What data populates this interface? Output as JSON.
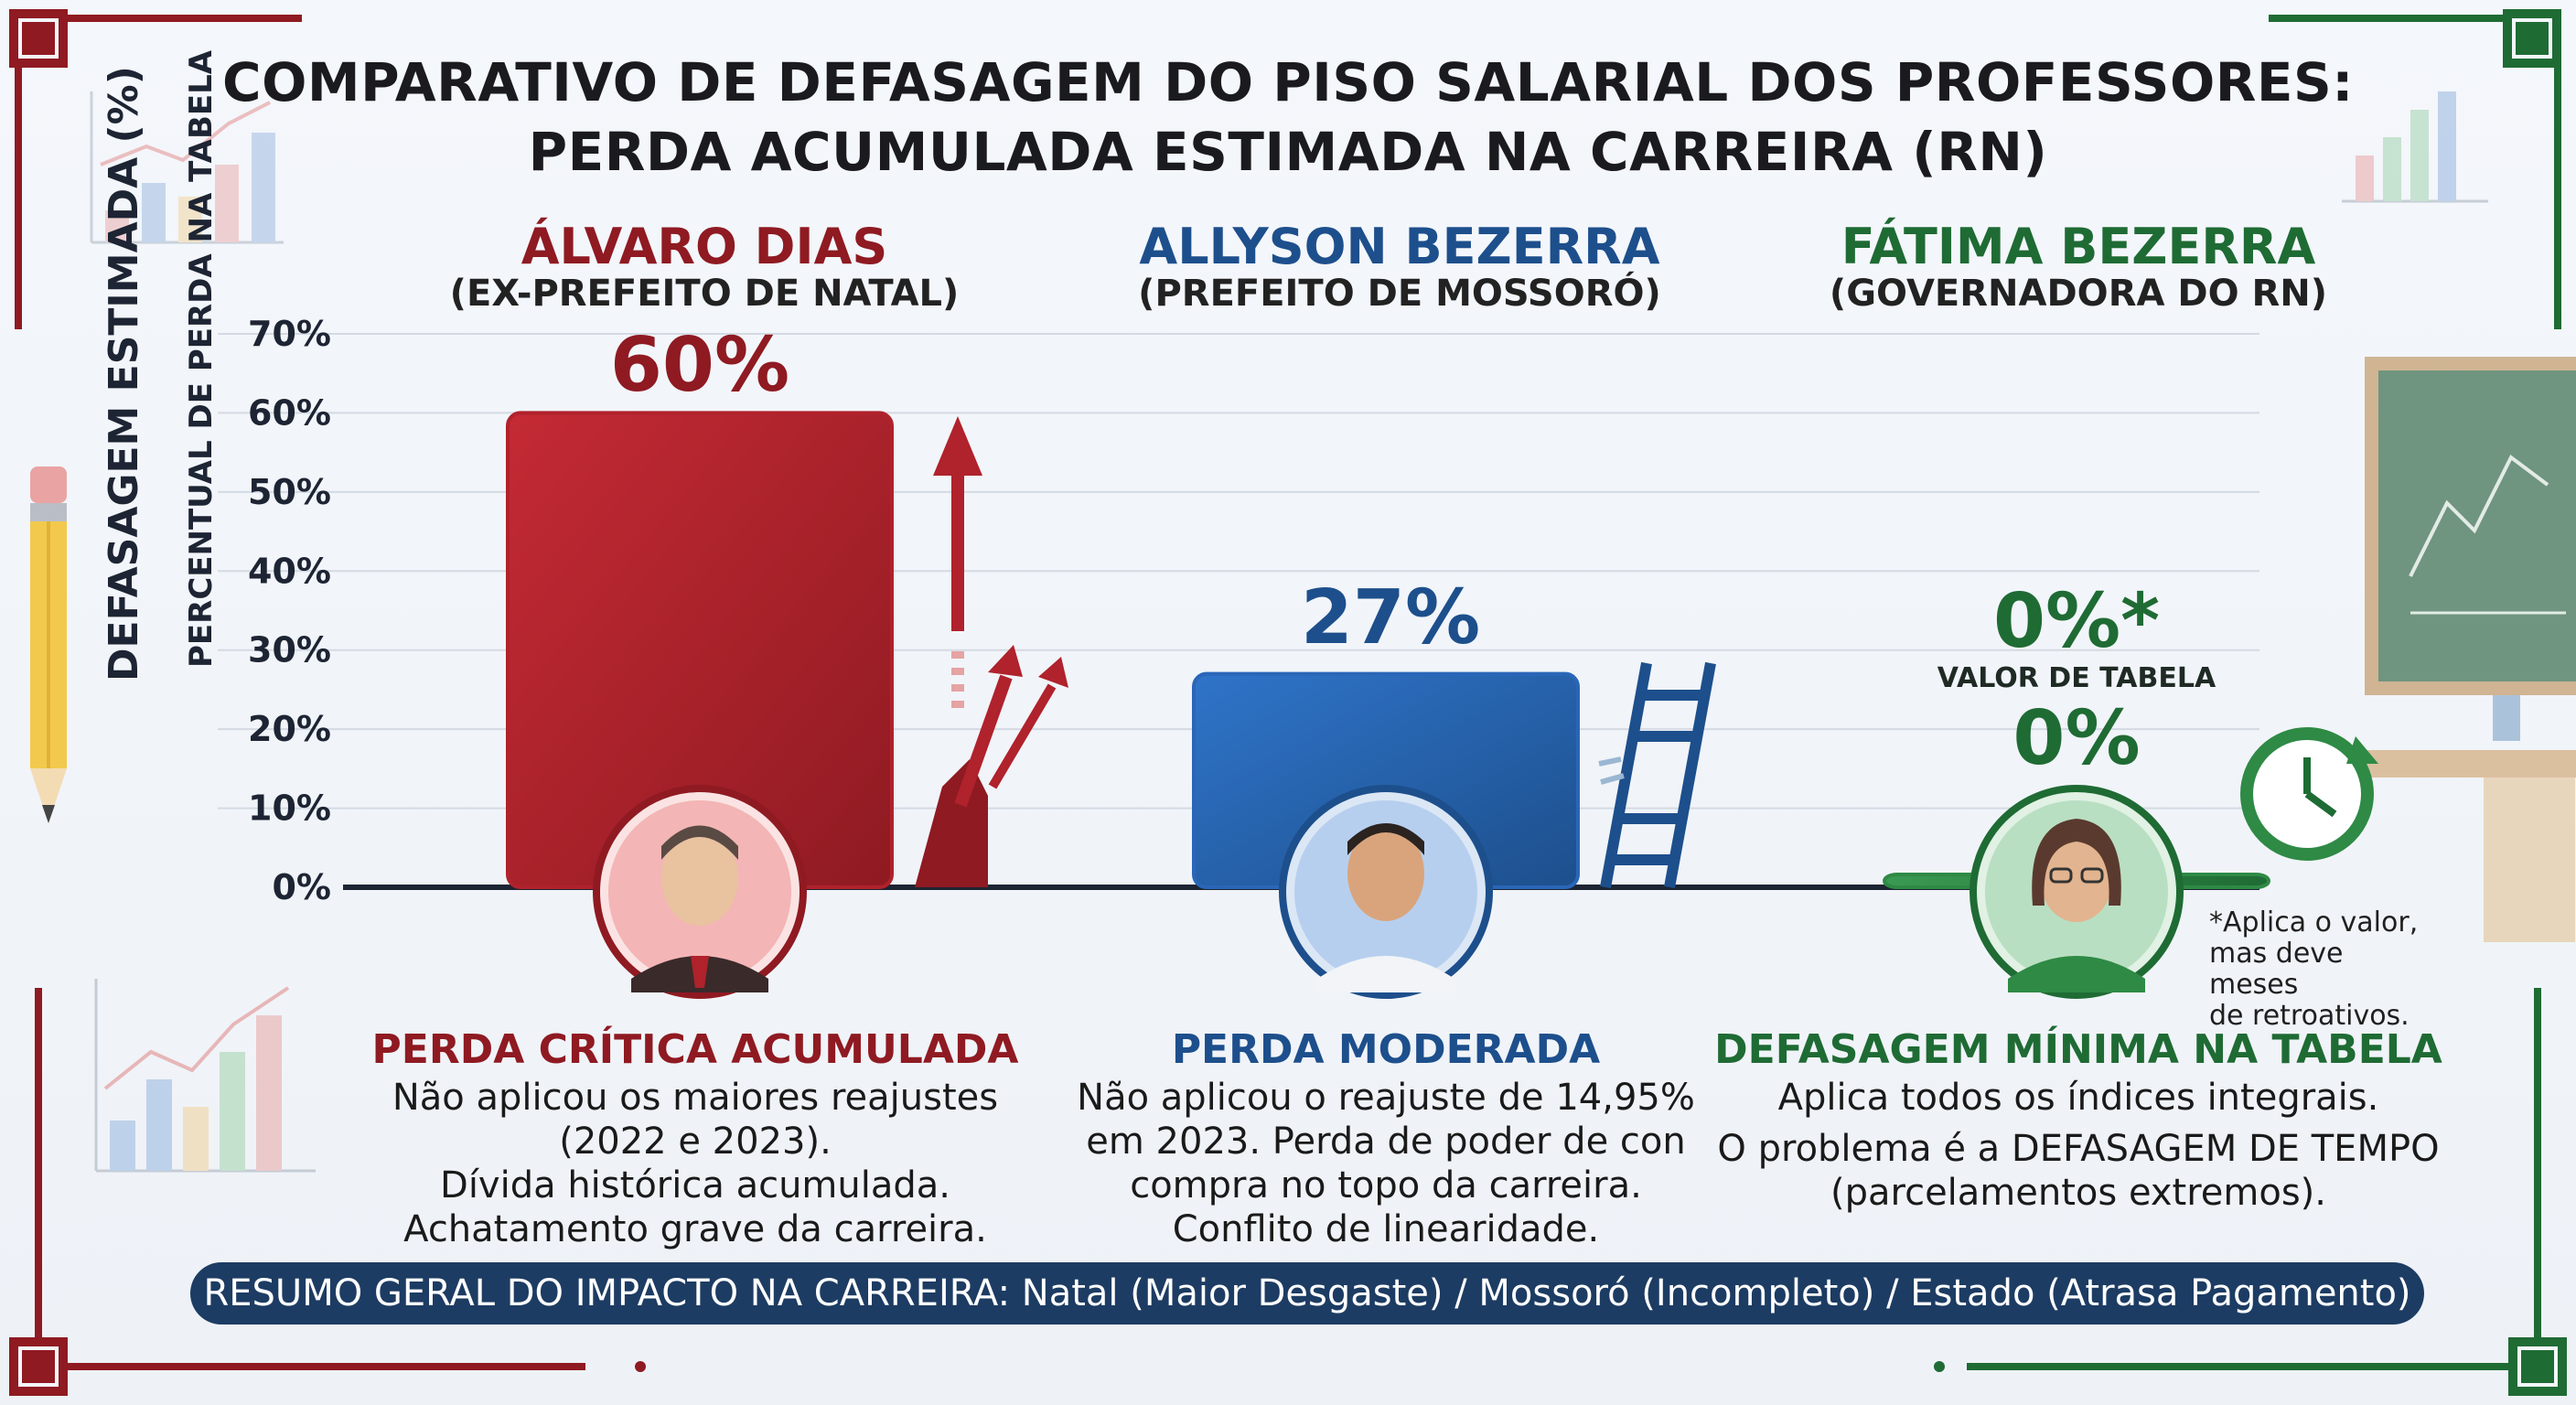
{
  "title": {
    "line1": "COMPARATIVO DE DEFASAGEM DO PISO SALARIAL DOS PROFESSORES:",
    "line2": "PERDA ACUMULADA ESTIMADA NA CARREIRA (RN)"
  },
  "colors": {
    "red": "#8f1a22",
    "blue": "#1d4f8c",
    "green": "#1f6b34",
    "footer": "#1d3c63"
  },
  "candidates": [
    {
      "name": "ÁLVARO DIAS",
      "role": "(EX-PREFEITO DE NATAL)"
    },
    {
      "name": "ALLYSON BEZERRA",
      "role": "(PREFEITO DE MOSSORÓ)"
    },
    {
      "name": "FÁTIMA BEZERRA",
      "role": "(GOVERNADORA DO RN)"
    }
  ],
  "chart_data": {
    "type": "bar",
    "categories": [
      "ÁLVARO DIAS",
      "ALLYSON BEZERRA",
      "FÁTIMA BEZERRA"
    ],
    "values": [
      60,
      27,
      0
    ],
    "data_labels": [
      "60%",
      "27%",
      "0%*"
    ],
    "ylabel": "DEFASAGEM ESTIMADA (%)",
    "ylabel_secondary": "PERCENTUAL DE PERDA NA TABELA",
    "ylim": [
      0,
      70
    ],
    "yticks": [
      "0%",
      "10%",
      "20%",
      "30%",
      "40%",
      "50%",
      "60%",
      "70%"
    ],
    "grid": true,
    "colors": [
      "#b0222c",
      "#2a66b8",
      "#2e8a45"
    ]
  },
  "fatima_extra": {
    "label": "VALOR DE TABELA",
    "value": "0%"
  },
  "note": {
    "line1": "*Aplica o valor,",
    "line2": "mas deve meses",
    "line3": "de retroativos."
  },
  "panels": [
    {
      "heading": "PERDA CRÍTICA ACUMULADA",
      "lines": [
        "Não aplicou os maiores reajustes",
        "(2022 e 2023).",
        "Dívida histórica acumulada.",
        "Achatamento grave da carreira."
      ]
    },
    {
      "heading": "PERDA MODERADA",
      "lines": [
        "Não aplicou o reajuste de 14,95%",
        "em 2023. Perda de poder de con",
        "compra no topo da carreira.",
        "Conflito de linearidade."
      ]
    },
    {
      "heading": "DEFASAGEM MÍNIMA NA TABELA",
      "lines": [
        "Aplica todos os índices integrais.",
        "O problema é a DEFASAGEM DE TEMPO",
        "(parcelamentos extremos)."
      ]
    }
  ],
  "footer": "RESUMO GERAL DO IMPACTO NA CARREIRA: Natal (Maior Desgaste) / Mossoró (Incompleto) / Estado (Atrasa Pagamento)"
}
